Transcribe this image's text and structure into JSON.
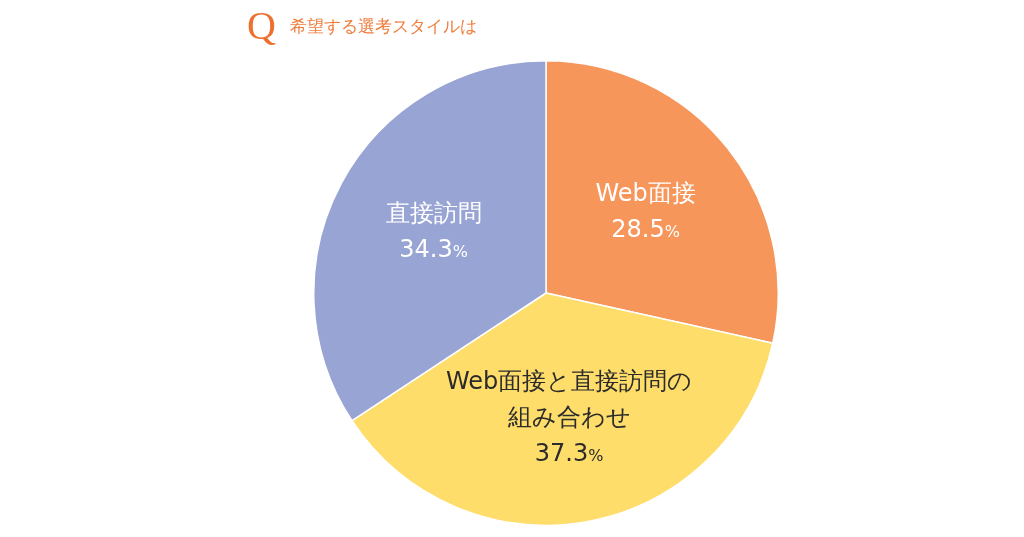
{
  "chart_data": {
    "type": "pie",
    "title": "Q 希望する選考スタイルは",
    "categories": [
      "Web面接",
      "Web面接と直接訪問の組み合わせ",
      "直接訪問"
    ],
    "values": [
      28.5,
      37.3,
      34.3
    ],
    "colors": [
      "#f6965a",
      "#fedd6a",
      "#98a5d4"
    ],
    "value_labels": [
      "28.5%",
      "37.3%",
      "34.3%"
    ],
    "legend": false
  }
}
